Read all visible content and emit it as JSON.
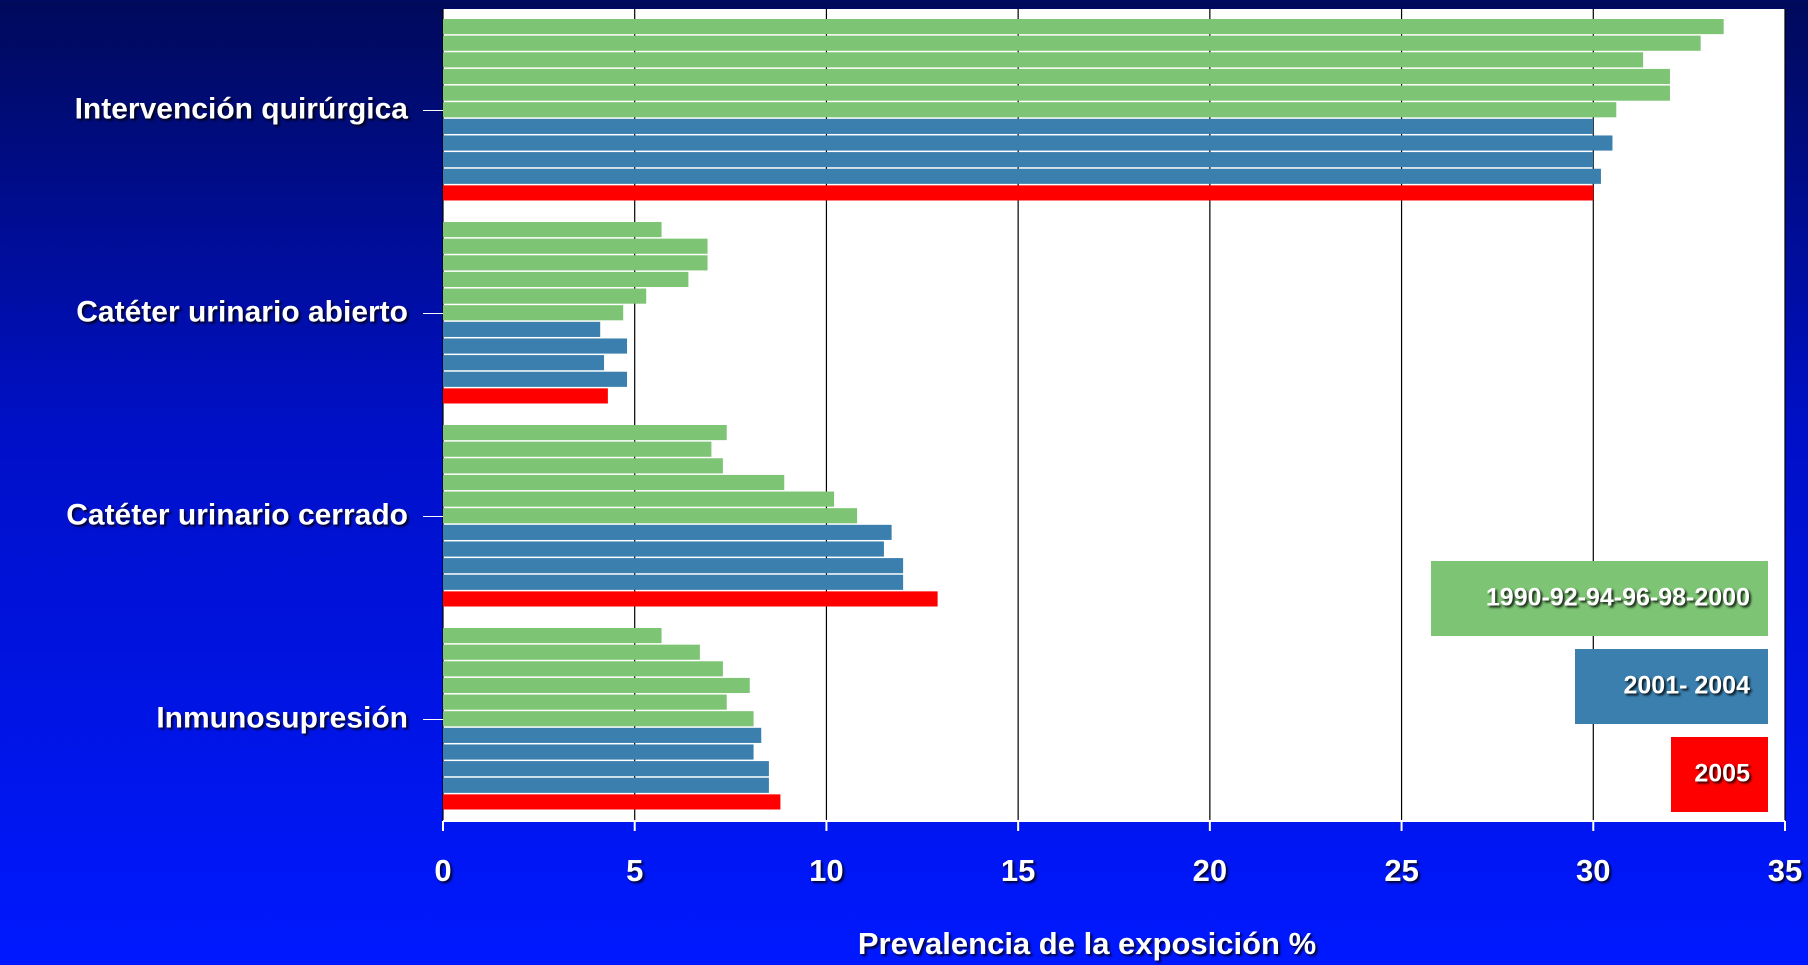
{
  "chart_data": {
    "type": "grouped-hbar",
    "categories": [
      "Intervención quirúrgica",
      "Catéter urinario abierto",
      "Catéter urinario cerrado",
      "Inmunosupresión"
    ],
    "series": [
      {
        "name": "1990-92-94-96-98-2000",
        "color": "#7dc474",
        "values": [
          [
            33.4,
            32.8,
            31.3,
            32.0,
            32.0,
            30.6
          ],
          [
            5.7,
            6.9,
            6.9,
            6.4,
            5.3,
            4.7
          ],
          [
            7.4,
            7.0,
            7.3,
            8.9,
            10.2,
            10.8
          ],
          [
            5.7,
            6.7,
            7.3,
            8.0,
            7.4,
            8.1
          ]
        ]
      },
      {
        "name": "2001- 2004",
        "color": "#3a7fae",
        "values": [
          [
            30.0,
            30.5,
            30.0,
            30.2
          ],
          [
            4.1,
            4.8,
            4.2,
            4.8
          ],
          [
            11.7,
            11.5,
            12.0,
            12.0
          ],
          [
            8.3,
            8.1,
            8.5,
            8.5
          ]
        ]
      },
      {
        "name": "2005",
        "color": "#ff0000",
        "values": [
          [
            30.0
          ],
          [
            4.3
          ],
          [
            12.9
          ],
          [
            8.8
          ]
        ]
      }
    ],
    "xlabel": "Prevalencia de la exposición %",
    "xlim": [
      0,
      35
    ],
    "xticks": [
      0,
      5,
      10,
      15,
      20,
      25,
      30,
      35
    ],
    "grid": true
  }
}
